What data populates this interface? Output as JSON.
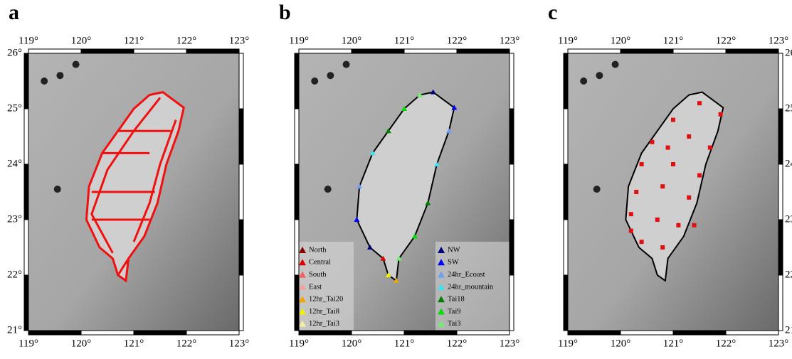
{
  "panels": [
    {
      "label": "a",
      "top_ticks": [
        "119°",
        "120°",
        "121°",
        "122°",
        "123°"
      ],
      "bottom_ticks": [
        "119°",
        "120°",
        "121°",
        "122°",
        "123°"
      ],
      "side_ticks": [
        "26°",
        "25°",
        "24°",
        "23°",
        "22°",
        "21°"
      ]
    },
    {
      "label": "b",
      "top_ticks": [
        "119°",
        "120°",
        "121°",
        "122°",
        "123°"
      ],
      "bottom_ticks": [
        "119°",
        "120°",
        "121°",
        "122°",
        "123°"
      ]
    },
    {
      "label": "c",
      "top_ticks": [
        "119°",
        "120°",
        "121°",
        "122°",
        "123°"
      ],
      "bottom_ticks": [
        "119°",
        "120°",
        "121°",
        "122°",
        "123°"
      ],
      "side_ticks": [
        "26°",
        "25°",
        "24°",
        "23°",
        "22°",
        "21°"
      ]
    }
  ],
  "legend": {
    "left": [
      {
        "name": "North",
        "color": "#8b0000"
      },
      {
        "name": "Central",
        "color": "#e00000"
      },
      {
        "name": "South",
        "color": "#f06060"
      },
      {
        "name": "East",
        "color": "#f4a0a0"
      },
      {
        "name": "12hr_Tai20",
        "color": "#f0a800"
      },
      {
        "name": "12hr_Tai8",
        "color": "#f0f000"
      },
      {
        "name": "12hr_Tai3",
        "color": "#f8f0a0"
      }
    ],
    "right": [
      {
        "name": "NW",
        "color": "#000080"
      },
      {
        "name": "SW",
        "color": "#0000ff"
      },
      {
        "name": "24hr_Ecoast",
        "color": "#6fa0f0"
      },
      {
        "name": "24hr_mountain",
        "color": "#40e0f0"
      },
      {
        "name": "Tai18",
        "color": "#008000"
      },
      {
        "name": "Tai9",
        "color": "#00e000"
      },
      {
        "name": "Tai3",
        "color": "#70f070"
      }
    ]
  }
}
